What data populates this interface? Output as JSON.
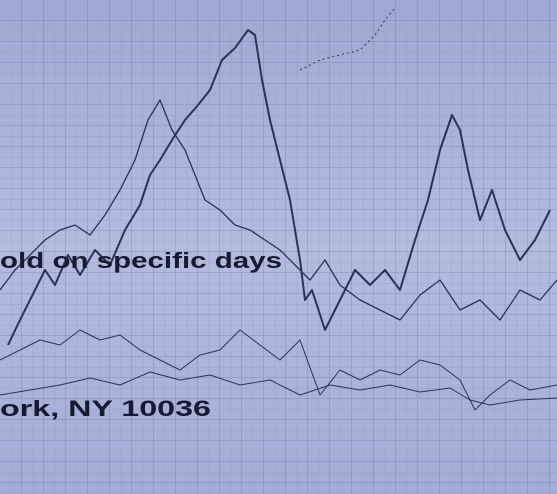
{
  "texts": [
    "old on specific days",
    "ork, NY 10036"
  ]
}
